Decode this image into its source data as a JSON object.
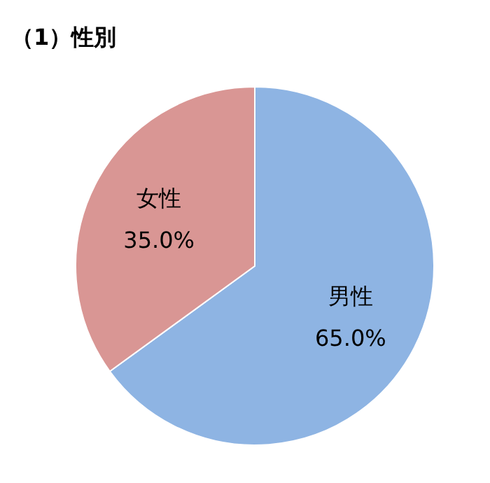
{
  "chart_data": {
    "type": "pie",
    "title": "（1）性別",
    "categories": [
      "男性",
      "女性"
    ],
    "values": [
      65.0,
      35.0
    ],
    "colors": [
      "#8eb4e3",
      "#d99694"
    ],
    "value_labels": [
      "65.0%",
      "35.0%"
    ]
  }
}
